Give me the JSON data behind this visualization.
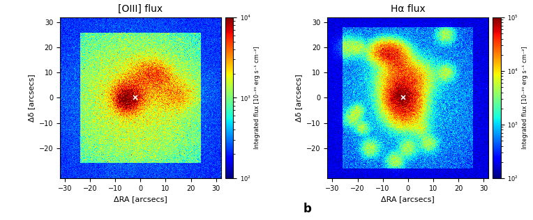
{
  "panel_a_title": "[OIII] flux",
  "panel_b_title": "Hα flux",
  "xlabel": "ΔRA [arcsecs]",
  "ylabel": "Δδ [arcsecs]",
  "colorbar_label_a": "Integrated flux [10⁻²⁰ erg s⁻¹ cm⁻²]",
  "colorbar_label_b": "Integrated flux [10⁻²⁰ erg s⁻¹ cm⁻²]",
  "xlim": [
    -32,
    32
  ],
  "ylim": [
    -32,
    32
  ],
  "xticks": [
    -30,
    -20,
    -10,
    0,
    10,
    20,
    30
  ],
  "yticks": [
    -20,
    -10,
    0,
    10,
    20,
    30
  ],
  "vmin_a": 100,
  "vmax_a": 10000,
  "vmin_b": 100,
  "vmax_b": 100000,
  "panel_b_label": "b",
  "marker_a_x": -2,
  "marker_a_y": 0,
  "marker_b_x": -2,
  "marker_b_y": 0,
  "figsize": [
    7.64,
    3.16
  ],
  "dpi": 100
}
